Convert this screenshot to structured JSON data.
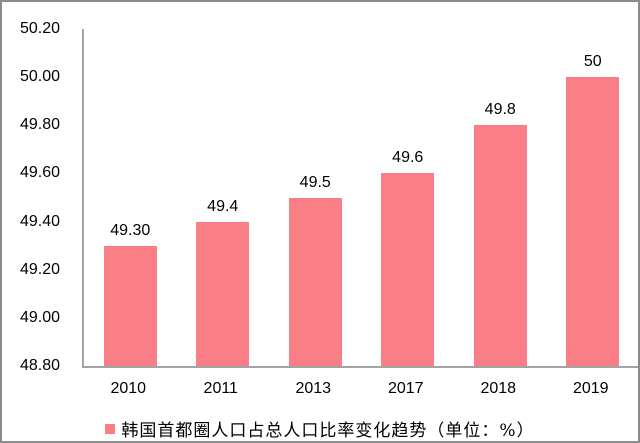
{
  "chart_data": {
    "type": "bar",
    "title": "",
    "xlabel": "",
    "ylabel": "",
    "categories": [
      "2010",
      "2011",
      "2013",
      "2017",
      "2018",
      "2019"
    ],
    "values": [
      49.3,
      49.4,
      49.5,
      49.6,
      49.8,
      50
    ],
    "data_labels": [
      "49.30",
      "49.4",
      "49.5",
      "49.6",
      "49.8",
      "50"
    ],
    "y_ticks": [
      "50.20",
      "50.00",
      "49.80",
      "49.60",
      "49.40",
      "49.20",
      "49.00",
      "48.80"
    ],
    "ylim": [
      48.8,
      50.2
    ],
    "grid": false,
    "legend_position": "bottom",
    "legend": "韩国首都圈人口占总人口比率变化趋势（单位：%）",
    "colors": {
      "bar": "#FA7E86",
      "axis": "#A3A3A3",
      "text": "#000000",
      "background": "#FFFFFF"
    }
  }
}
